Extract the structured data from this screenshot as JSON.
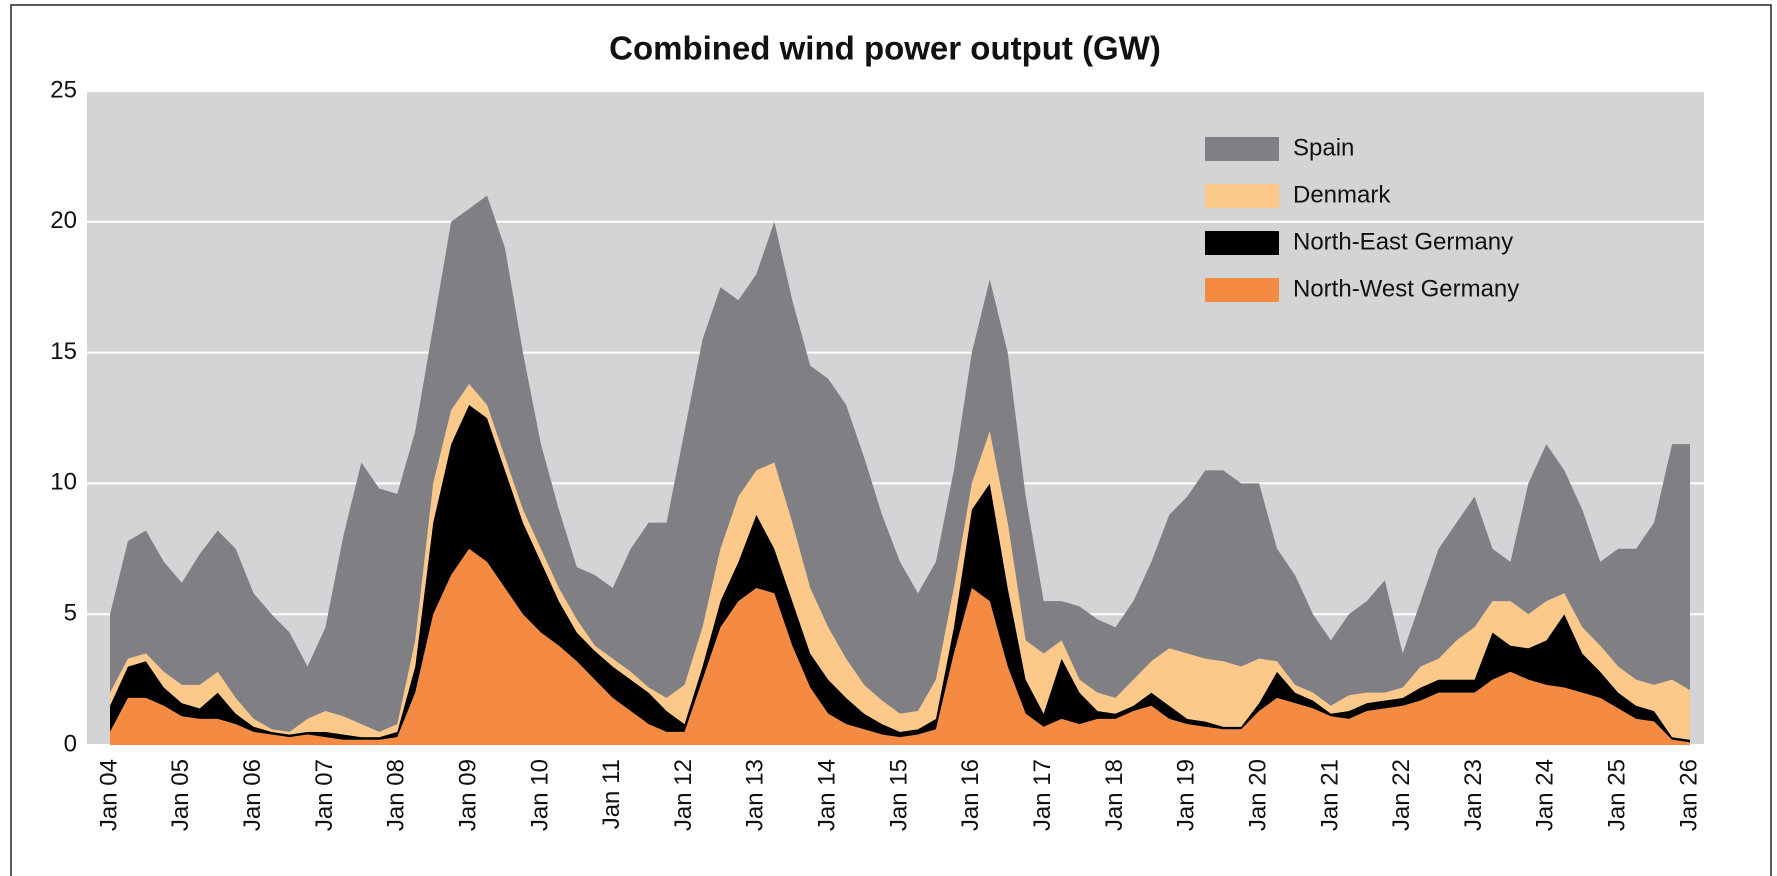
{
  "chart_data": {
    "type": "stacked_area",
    "title": "Combined wind power output (GW)",
    "categories": [
      "Jan 04",
      null,
      null,
      null,
      "Jan 05",
      null,
      null,
      null,
      "Jan 06",
      null,
      null,
      null,
      "Jan 07",
      null,
      null,
      null,
      "Jan 08",
      null,
      null,
      null,
      "Jan 09",
      null,
      null,
      null,
      "Jan 10",
      null,
      null,
      null,
      "Jan 11",
      null,
      null,
      null,
      "Jan 12",
      null,
      null,
      null,
      "Jan 13",
      null,
      null,
      null,
      "Jan 14",
      null,
      null,
      null,
      "Jan 15",
      null,
      null,
      null,
      "Jan 16",
      null,
      null,
      null,
      "Jan 17",
      null,
      null,
      null,
      "Jan 18",
      null,
      null,
      null,
      "Jan 19",
      null,
      null,
      null,
      "Jan 20",
      null,
      null,
      null,
      "Jan 21",
      null,
      null,
      null,
      "Jan 22",
      null,
      null,
      null,
      "Jan 23",
      null,
      null,
      null,
      "Jan 24",
      null,
      null,
      null,
      "Jan 25",
      null,
      null,
      null,
      "Jan 26"
    ],
    "series": [
      {
        "name": "North-West Germany",
        "color": "#f58a42",
        "values": [
          0.5,
          1.8,
          1.8,
          1.5,
          1.1,
          1.0,
          1.0,
          0.8,
          0.5,
          0.4,
          0.3,
          0.4,
          0.3,
          0.2,
          0.2,
          0.2,
          0.3,
          2,
          5,
          6.5,
          7.5,
          7,
          6,
          5,
          4.3,
          3.8,
          3.2,
          2.5,
          1.8,
          1.3,
          0.8,
          0.5,
          0.5,
          2.5,
          4.5,
          5.5,
          6,
          5.8,
          3.8,
          2.2,
          1.2,
          0.8,
          0.6,
          0.4,
          0.3,
          0.4,
          0.6,
          3.5,
          6,
          5.5,
          3,
          1.2,
          0.7,
          1.0,
          0.8,
          1.0,
          1.0,
          1.3,
          1.5,
          1.0,
          0.8,
          0.7,
          0.6,
          0.6,
          1.3,
          1.8,
          1.6,
          1.4,
          1.1,
          1.0,
          1.3,
          1.4,
          1.5,
          1.7,
          2.0,
          2.0,
          2.0,
          2.5,
          2.8,
          2.5,
          2.3,
          2.2,
          2.0,
          1.8,
          1.4,
          1.0,
          0.9,
          0.2,
          0.1
        ]
      },
      {
        "name": "North-East Germany",
        "color": "#000000",
        "values": [
          1.0,
          1.2,
          1.4,
          0.7,
          0.5,
          0.4,
          1.0,
          0.4,
          0.2,
          0.1,
          0.1,
          0.1,
          0.2,
          0.2,
          0.1,
          0.1,
          0.2,
          1.0,
          3.5,
          5.0,
          5.5,
          5.5,
          4.5,
          3.5,
          2.7,
          1.7,
          1.1,
          1.1,
          1.2,
          1.2,
          1.2,
          0.8,
          0.3,
          0.5,
          1.0,
          1.5,
          2.8,
          1.7,
          1.7,
          1.3,
          1.3,
          1.0,
          0.6,
          0.4,
          0.2,
          0.2,
          0.4,
          1.0,
          3.0,
          4.5,
          3.0,
          1.3,
          0.5,
          2.3,
          1.2,
          0.3,
          0.2,
          0.2,
          0.5,
          0.5,
          0.2,
          0.2,
          0.1,
          0.1,
          0.3,
          1.0,
          0.4,
          0.3,
          0.1,
          0.3,
          0.3,
          0.3,
          0.3,
          0.5,
          0.5,
          0.5,
          0.5,
          1.8,
          1.0,
          1.2,
          1.7,
          2.8,
          1.5,
          1.0,
          0.6,
          0.5,
          0.4,
          0.1,
          0.1
        ]
      },
      {
        "name": "Denmark",
        "color": "#fdc98a",
        "values": [
          0.5,
          0.3,
          0.3,
          0.6,
          0.7,
          0.9,
          0.8,
          0.6,
          0.3,
          0.1,
          0.1,
          0.5,
          0.8,
          0.7,
          0.5,
          0.2,
          0.3,
          1.0,
          1.5,
          1.3,
          0.8,
          0.5,
          0.5,
          0.5,
          0.5,
          0.5,
          0.5,
          0.2,
          0.3,
          0.3,
          0.2,
          0.5,
          1.5,
          1.5,
          2.0,
          2.5,
          1.7,
          3.3,
          3.0,
          2.5,
          2.0,
          1.5,
          1.1,
          0.9,
          0.7,
          0.7,
          1.5,
          1.5,
          1.0,
          2.0,
          2.5,
          1.5,
          2.3,
          0.7,
          0.5,
          0.7,
          0.6,
          1.0,
          1.2,
          2.2,
          2.5,
          2.4,
          2.5,
          2.3,
          1.7,
          0.4,
          0.3,
          0.3,
          0.3,
          0.6,
          0.4,
          0.3,
          0.4,
          0.8,
          0.8,
          1.5,
          2.0,
          1.2,
          1.7,
          1.3,
          1.5,
          0.8,
          1.0,
          1.0,
          1.0,
          1.0,
          1.0,
          2.2,
          1.9
        ]
      },
      {
        "name": "Spain",
        "color": "#808084",
        "values": [
          3.0,
          4.5,
          4.7,
          4.2,
          3.9,
          5.0,
          5.4,
          5.7,
          4.8,
          4.4,
          3.8,
          2.0,
          3.2,
          6.9,
          10.0,
          9.3,
          8.8,
          8,
          6,
          7.2,
          6.7,
          8,
          8,
          6,
          4,
          3,
          2,
          2.7,
          2.7,
          4.7,
          6.3,
          6.7,
          9.7,
          11,
          10,
          7.5,
          7.5,
          9.2,
          8.5,
          8.5,
          9.5,
          9.7,
          8.7,
          7.1,
          5.8,
          4.5,
          4.5,
          4.5,
          5,
          5.8,
          6.5,
          5.5,
          2,
          1.5,
          2.8,
          2.8,
          2.7,
          3,
          3.8,
          5.1,
          6,
          7.2,
          7.3,
          7,
          6.7,
          4.3,
          4.2,
          3,
          2.5,
          3.1,
          3.5,
          4.3,
          1.3,
          2.5,
          4.2,
          4.5,
          5,
          2,
          1.5,
          5,
          6,
          4.7,
          4.5,
          3.2,
          4.5,
          5,
          6.2,
          9,
          9.4
        ]
      }
    ],
    "ylim": [
      0,
      25
    ],
    "yticks": [
      0,
      5,
      10,
      15,
      20,
      25
    ],
    "grid": true,
    "legend": "upper right",
    "plot_background": "#d3d4d6"
  }
}
